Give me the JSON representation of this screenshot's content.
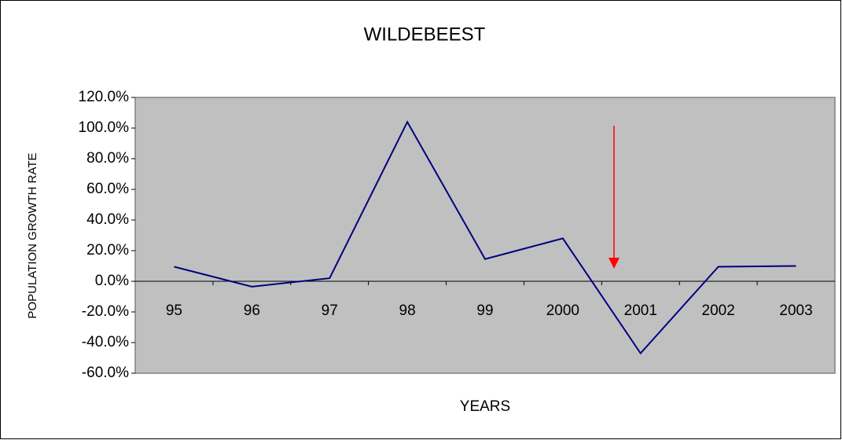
{
  "chart_data": {
    "type": "line",
    "title": "WILDEBEEST",
    "x_label": "YEARS",
    "y_label": "POPULATION GROWTH RATE",
    "categories": [
      "95",
      "96",
      "97",
      "98",
      "99",
      "2000",
      "2001",
      "2002",
      "2003"
    ],
    "series": [
      {
        "name": "WILDEBEEST",
        "color": "#000080",
        "values": [
          9.5,
          -3.5,
          2,
          104,
          14.5,
          28,
          -47,
          9.5,
          10
        ]
      }
    ],
    "ylim": [
      -60,
      120
    ],
    "yticks": [
      {
        "value": -60,
        "label": "-60.0%"
      },
      {
        "value": -40,
        "label": "-40.0%"
      },
      {
        "value": -20,
        "label": "-20.0%"
      },
      {
        "value": 0,
        "label": "0.0%"
      },
      {
        "value": 20,
        "label": "20.0%"
      },
      {
        "value": 40,
        "label": "40.0%"
      },
      {
        "value": 60,
        "label": "60.0%"
      },
      {
        "value": 80,
        "label": "80.0%"
      },
      {
        "value": 100,
        "label": "100.0%"
      },
      {
        "value": 120,
        "label": "120.0%"
      }
    ],
    "plot_background": "#c0c0c0",
    "grid": false
  }
}
